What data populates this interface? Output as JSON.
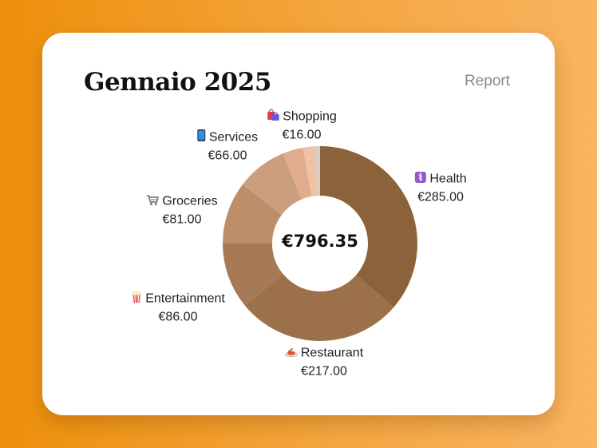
{
  "header": {
    "title": "Gennaio 2025",
    "report_label": "Report"
  },
  "chart_data": {
    "type": "pie",
    "total_label": "€796.35",
    "colors": [
      "#8B6239",
      "#9C7048",
      "#A67A57",
      "#BE8E6B",
      "#CB9F7E",
      "#E0AC8D",
      "#F1C1A5",
      "#D8D0C6"
    ],
    "slices": [
      {
        "category": "Health",
        "value_label": "€285.00",
        "value": 285.0,
        "icon": "caduceus-icon",
        "show_label": true
      },
      {
        "category": "Restaurant",
        "value_label": "€217.00",
        "value": 217.0,
        "icon": "food-plate-icon",
        "show_label": true
      },
      {
        "category": "Entertainment",
        "value_label": "€86.00",
        "value": 86.0,
        "icon": "popcorn-icon",
        "show_label": true
      },
      {
        "category": "Groceries",
        "value_label": "€81.00",
        "value": 81.0,
        "icon": "shopping-cart-icon",
        "show_label": true
      },
      {
        "category": "Services",
        "value_label": "€66.00",
        "value": 66.0,
        "icon": "mobile-phone-icon",
        "show_label": true
      },
      {
        "category": "",
        "value_label": "",
        "value": 27,
        "icon": "",
        "show_label": false
      },
      {
        "category": "Shopping",
        "value_label": "€16.00",
        "value": 16.0,
        "icon": "shopping-bags-icon",
        "show_label": true
      },
      {
        "category": "",
        "value_label": "",
        "value": 6,
        "icon": "",
        "show_label": false
      }
    ]
  }
}
